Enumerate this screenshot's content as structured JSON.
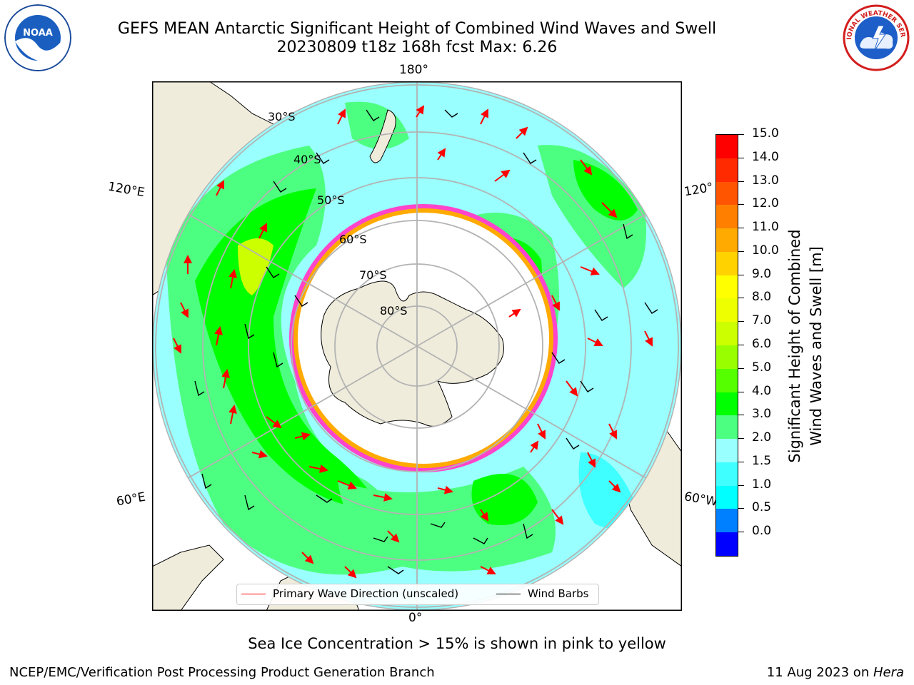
{
  "title": {
    "line1": "GEFS MEAN Antarctic Significant Height of Combined Wind Waves and Swell",
    "line2": "20230809 t18z 168h fcst   Max: 6.26"
  },
  "logos": {
    "left": {
      "icon": "noaa-logo",
      "text": "NOAA"
    },
    "right": {
      "icon": "nws-logo",
      "text": "NATIONAL WEATHER SERVICE"
    }
  },
  "map": {
    "projection": "south-polar-stereographic",
    "lon_labels": {
      "top": "180°",
      "bottom": "0°",
      "left_upper": "120°E",
      "left_lower": "60°E",
      "right_upper": "120°",
      "right_lower": "60°W"
    },
    "lat_labels": [
      "30°S",
      "40°S",
      "50°S",
      "60°S",
      "70°S",
      "80°S"
    ],
    "colors": {
      "land": "#efecdc",
      "coast": "#000000",
      "grid": "#b3b3b3",
      "wave_arrow": "#ff0000",
      "wind_barb": "#000000",
      "sea_ice": "#ff44cc"
    }
  },
  "colorbar": {
    "label_line1": "Significant Height of Combined",
    "label_line2": "Wind Waves and Swell [m]",
    "ticks": [
      "15.0",
      "14.0",
      "13.0",
      "12.0",
      "11.0",
      "10.0",
      "9.0",
      "8.0",
      "7.0",
      "6.0",
      "5.0",
      "4.0",
      "3.0",
      "2.0",
      "1.5",
      "1.0",
      "0.5",
      "0.0"
    ],
    "colors": [
      "#0000ff",
      "#0080ff",
      "#00ffff",
      "#40ffff",
      "#99ffff",
      "#4dff80",
      "#00ff00",
      "#55ff00",
      "#99ff00",
      "#ccff00",
      "#eeff00",
      "#ffff00",
      "#ffd200",
      "#ffaa00",
      "#ff8000",
      "#ff5500",
      "#ff2a00",
      "#ff0000"
    ]
  },
  "legend": {
    "primary_wave": "Primary Wave Direction (unscaled)",
    "wind_barbs": "Wind Barbs"
  },
  "note": "Sea Ice Concentration > 15% is shown in pink to yellow",
  "footer": {
    "left": "NCEP/EMC/Verification Post Processing Product Generation Branch",
    "date": "11 Aug 2023 on ",
    "machine": "Hera"
  }
}
